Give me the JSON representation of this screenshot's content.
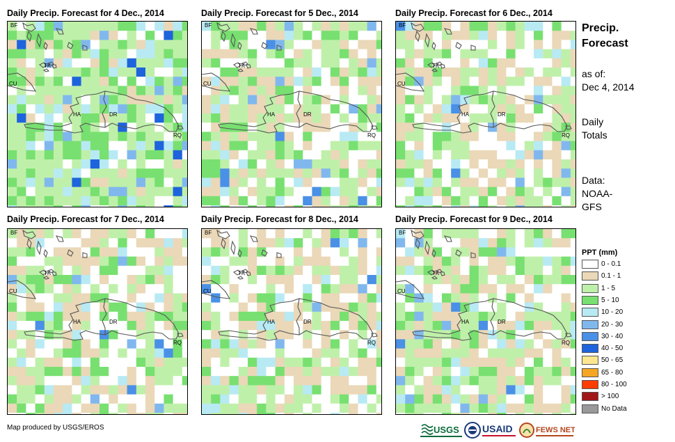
{
  "panels": [
    {
      "title": "Daily Precip. Forecast for 4 Dec., 2014",
      "seed": 11,
      "wet": 0.78
    },
    {
      "title": "Daily Precip. Forecast for 5 Dec., 2014",
      "seed": 23,
      "wet": 0.55
    },
    {
      "title": "Daily Precip. Forecast for 6 Dec., 2014",
      "seed": 37,
      "wet": 0.45
    },
    {
      "title": "Daily Precip. Forecast for 7 Dec., 2014",
      "seed": 41,
      "wet": 0.38
    },
    {
      "title": "Daily Precip. Forecast for 8 Dec., 2014",
      "seed": 53,
      "wet": 0.42
    },
    {
      "title": "Daily Precip. Forecast for 9 Dec., 2014",
      "seed": 67,
      "wet": 0.5
    }
  ],
  "map_labels": {
    "bf": "BF",
    "tk": "TK",
    "cu": "CU",
    "ha": "HA",
    "dr": "DR",
    "rq": "RQ"
  },
  "sidebar": {
    "title_line1": "Precip.",
    "title_line2": "Forecast",
    "asof_label": "as of:",
    "asof_date": "Dec 4, 2014",
    "totals_line1": "Daily",
    "totals_line2": "Totals",
    "data_label": "Data:",
    "data_source1": "NOAA-",
    "data_source2": "GFS"
  },
  "legend": {
    "title": "PPT (mm)",
    "items": [
      {
        "label": "0 - 0.1",
        "color": "#ffffff"
      },
      {
        "label": "0.1 - 1",
        "color": "#ead8b8"
      },
      {
        "label": "1 - 5",
        "color": "#bff0aa"
      },
      {
        "label": "5 - 10",
        "color": "#78e070"
      },
      {
        "label": "10 - 20",
        "color": "#b8eaf4"
      },
      {
        "label": "20 - 30",
        "color": "#80b8ee"
      },
      {
        "label": "30 - 40",
        "color": "#4a90e6"
      },
      {
        "label": "40 - 50",
        "color": "#1e64dc"
      },
      {
        "label": "50 - 65",
        "color": "#fce690"
      },
      {
        "label": "65 - 80",
        "color": "#f5a623"
      },
      {
        "label": "80 - 100",
        "color": "#ff3c00"
      },
      {
        "label": "> 100",
        "color": "#a01818"
      },
      {
        "label": "No Data",
        "color": "#9a9a9a"
      }
    ]
  },
  "footer": {
    "credit": "Map produced by USGS/EROS",
    "logo_usgs": "USGS",
    "logo_usaid": "USAID",
    "logo_fews": "FEWS NET"
  }
}
